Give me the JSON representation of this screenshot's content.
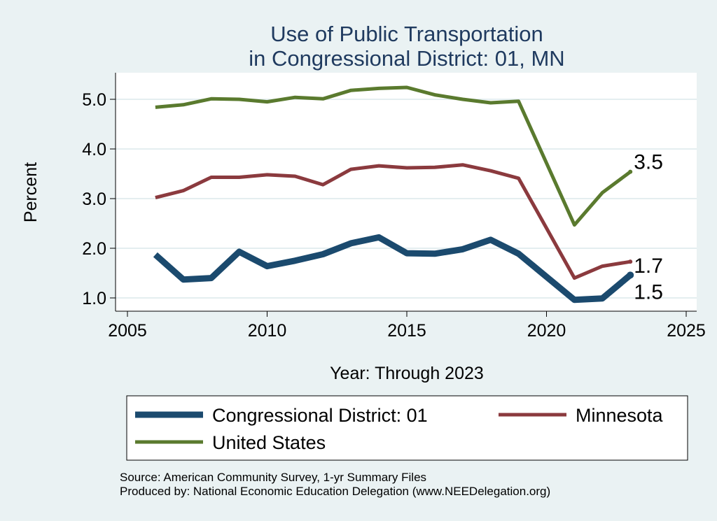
{
  "chart_data": {
    "type": "line",
    "title": [
      "Use of Public Transportation",
      "in Congressional District: 01, MN"
    ],
    "xlabel": "Year: Through 2023",
    "ylabel": "Percent",
    "xlim": [
      2005,
      2025
    ],
    "ylim": [
      0.8,
      5.45
    ],
    "xticks": [
      2005,
      2010,
      2015,
      2020,
      2025
    ],
    "yticks": [
      1.0,
      2.0,
      3.0,
      4.0,
      5.0
    ],
    "ytick_labels": [
      "1.0",
      "2.0",
      "3.0",
      "4.0",
      "5.0"
    ],
    "grid": true,
    "x": [
      2006,
      2007,
      2008,
      2009,
      2010,
      2011,
      2012,
      2013,
      2014,
      2015,
      2016,
      2017,
      2018,
      2019,
      2021,
      2022,
      2023
    ],
    "series": [
      {
        "name": "United States",
        "color": "#5a7a2e",
        "values": [
          4.84,
          4.89,
          5.01,
          5.0,
          4.95,
          5.04,
          5.01,
          5.18,
          5.22,
          5.24,
          5.09,
          5.0,
          4.93,
          4.96,
          2.47,
          3.12,
          3.54
        ],
        "end_label": "3.5"
      },
      {
        "name": "Minnesota",
        "color": "#8b3a3e",
        "values": [
          3.02,
          3.16,
          3.43,
          3.43,
          3.48,
          3.45,
          3.28,
          3.59,
          3.66,
          3.62,
          3.63,
          3.68,
          3.56,
          3.41,
          1.4,
          1.64,
          1.73
        ],
        "end_label": "1.7"
      },
      {
        "name": "Congressional District: 01",
        "color": "#1b4a6e",
        "values": [
          1.87,
          1.37,
          1.4,
          1.93,
          1.64,
          1.75,
          1.88,
          2.1,
          2.22,
          1.9,
          1.89,
          1.98,
          2.17,
          1.89,
          0.96,
          0.99,
          1.46
        ],
        "end_label": "1.5"
      }
    ],
    "legend": {
      "position": "bottom",
      "entries": [
        "Congressional District: 01",
        "Minnesota",
        "United States"
      ]
    }
  },
  "source": {
    "line1": "Source: American Community Survey, 1-yr Summary Files",
    "line2": "Produced by: National Economic Education Delegation (www.NEEDelegation.org)"
  }
}
